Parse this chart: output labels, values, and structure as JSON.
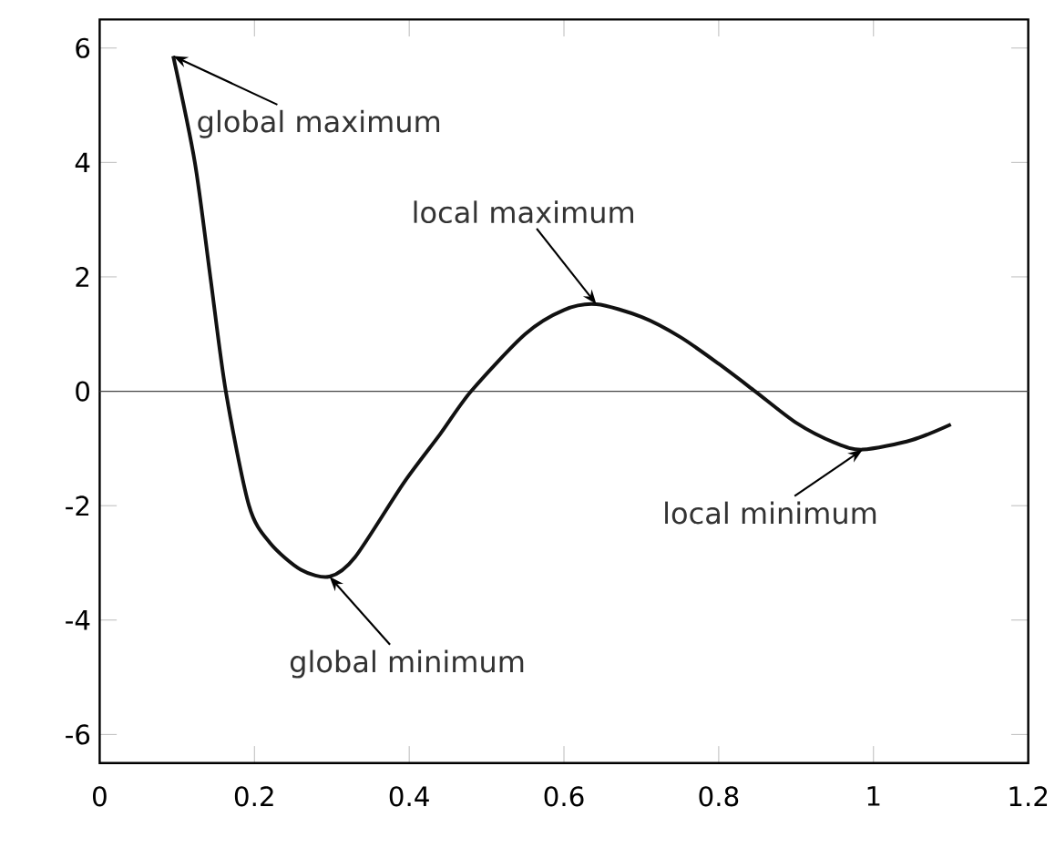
{
  "chart_data": {
    "type": "line",
    "x": [
      0.095,
      0.123,
      0.143,
      0.163,
      0.193,
      0.22,
      0.26,
      0.297,
      0.33,
      0.393,
      0.44,
      0.48,
      0.55,
      0.6,
      0.642,
      0.7,
      0.75,
      0.8,
      0.847,
      0.9,
      0.95,
      0.986,
      1.05,
      1.1
    ],
    "values": [
      5.86,
      4,
      2,
      0,
      -2,
      -2.65,
      -3.12,
      -3.24,
      -2.9,
      -1.6,
      -0.75,
      0,
      1.0,
      1.42,
      1.52,
      1.3,
      0.95,
      0.48,
      0,
      -0.55,
      -0.9,
      -1.02,
      -0.85,
      -0.58
    ],
    "color": "#111111",
    "xlim": [
      0,
      1.2
    ],
    "ylim": [
      -6.5,
      6.5
    ],
    "xticks": [
      0,
      0.2,
      0.4,
      0.6,
      0.8,
      1,
      1.2
    ],
    "yticks": [
      -6,
      -4,
      -2,
      0,
      2,
      4,
      6
    ],
    "ref_lines": [
      {
        "axis": "y",
        "value": 0,
        "color": "#444444"
      }
    ],
    "marker": "none",
    "line_style": "solid",
    "annotations": [
      {
        "text": "global maximum",
        "x": 0.095,
        "y": 5.86
      },
      {
        "text": "local maximum",
        "x": 0.642,
        "y": 1.52
      },
      {
        "text": "local minimum",
        "x": 0.986,
        "y": -1.02
      },
      {
        "text": "global minimum",
        "x": 0.297,
        "y": -3.24
      }
    ]
  }
}
